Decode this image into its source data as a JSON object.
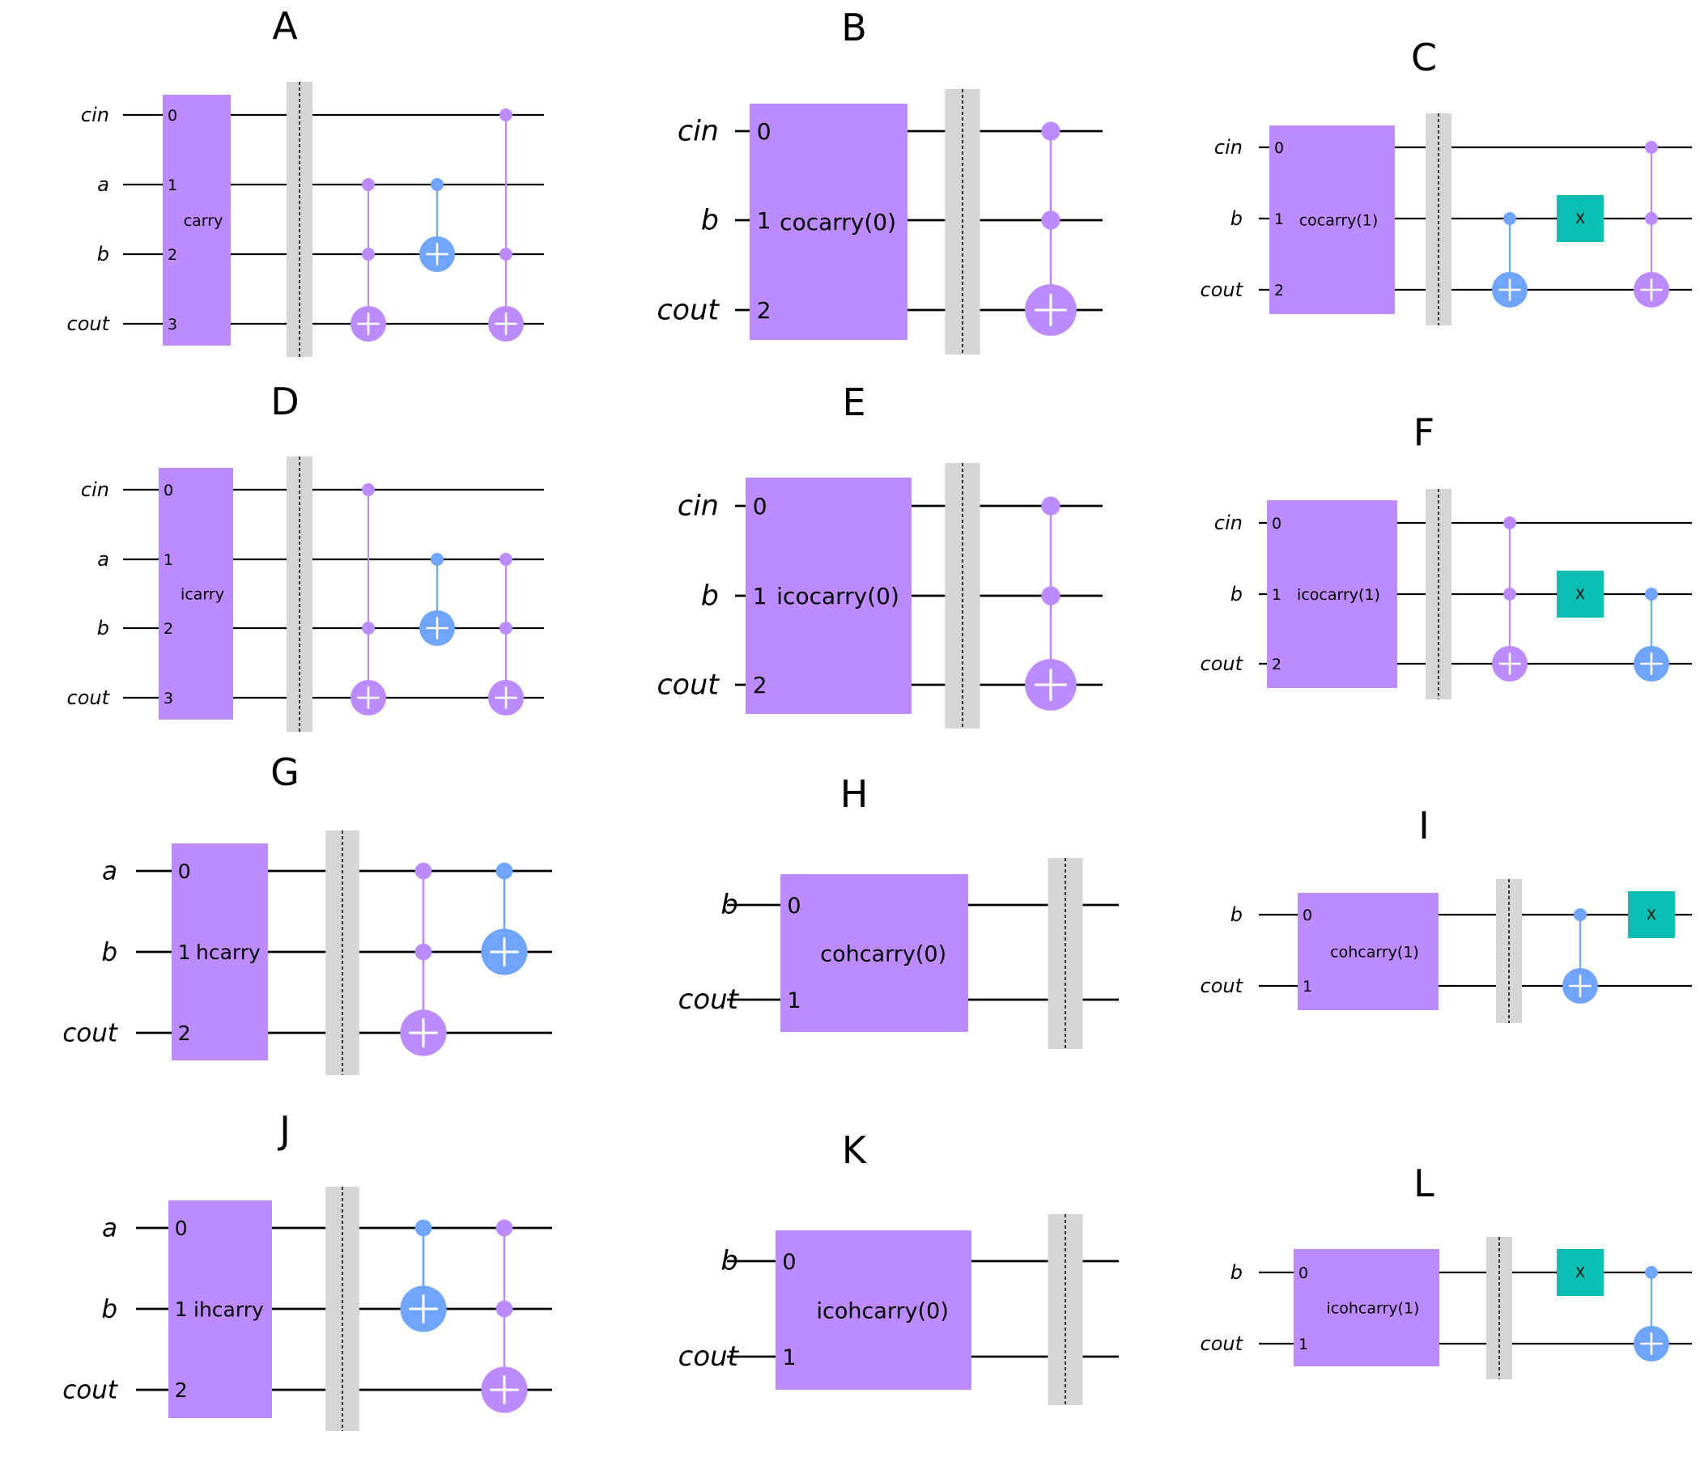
{
  "colors": {
    "gate": "#bb8bff",
    "gate_blue": "#6fa4ff",
    "x_gate": "#08bdb2",
    "barrier": "#d6d6d6",
    "wire": "#000000"
  },
  "panels": [
    {
      "letter": "A",
      "wires": [
        "cin",
        "a",
        "b",
        "cout"
      ],
      "ports": [
        "0",
        "1",
        "2",
        "3"
      ],
      "gate_label": "carry",
      "ops": [
        {
          "type": "ccx",
          "controls": [
            1,
            2
          ],
          "target": 3,
          "color": "purple"
        },
        {
          "type": "cx",
          "controls": [
            1
          ],
          "target": 2,
          "color": "blue"
        },
        {
          "type": "ccx",
          "controls": [
            0,
            2
          ],
          "target": 3,
          "color": "purple"
        }
      ]
    },
    {
      "letter": "B",
      "wires": [
        "cin",
        "b",
        "cout"
      ],
      "ports": [
        "0",
        "1",
        "2"
      ],
      "gate_label": "cocarry(0)",
      "ops": [
        {
          "type": "ccx",
          "controls": [
            0,
            1
          ],
          "target": 2,
          "color": "purple"
        }
      ]
    },
    {
      "letter": "C",
      "wires": [
        "cin",
        "b",
        "cout"
      ],
      "ports": [
        "0",
        "1",
        "2"
      ],
      "gate_label": "cocarry(1)",
      "ops": [
        {
          "type": "cx",
          "controls": [
            1
          ],
          "target": 2,
          "color": "blue"
        },
        {
          "type": "x",
          "target": 1,
          "label": "X"
        },
        {
          "type": "ccx",
          "controls": [
            0,
            1
          ],
          "target": 2,
          "color": "purple"
        }
      ]
    },
    {
      "letter": "D",
      "wires": [
        "cin",
        "a",
        "b",
        "cout"
      ],
      "ports": [
        "0",
        "1",
        "2",
        "3"
      ],
      "gate_label": "icarry",
      "ops": [
        {
          "type": "ccx",
          "controls": [
            0,
            2
          ],
          "target": 3,
          "color": "purple"
        },
        {
          "type": "cx",
          "controls": [
            1
          ],
          "target": 2,
          "color": "blue"
        },
        {
          "type": "ccx",
          "controls": [
            1,
            2
          ],
          "target": 3,
          "color": "purple"
        }
      ]
    },
    {
      "letter": "E",
      "wires": [
        "cin",
        "b",
        "cout"
      ],
      "ports": [
        "0",
        "1",
        "2"
      ],
      "gate_label": "icocarry(0)",
      "ops": [
        {
          "type": "ccx",
          "controls": [
            0,
            1
          ],
          "target": 2,
          "color": "purple"
        }
      ]
    },
    {
      "letter": "F",
      "wires": [
        "cin",
        "b",
        "cout"
      ],
      "ports": [
        "0",
        "1",
        "2"
      ],
      "gate_label": "icocarry(1)",
      "ops": [
        {
          "type": "ccx",
          "controls": [
            0,
            1
          ],
          "target": 2,
          "color": "purple"
        },
        {
          "type": "x",
          "target": 1,
          "label": "X"
        },
        {
          "type": "cx",
          "controls": [
            1
          ],
          "target": 2,
          "color": "blue"
        }
      ]
    },
    {
      "letter": "G",
      "wires": [
        "a",
        "b",
        "cout"
      ],
      "ports": [
        "0",
        "1",
        "2"
      ],
      "gate_label": "hcarry",
      "ops": [
        {
          "type": "ccx",
          "controls": [
            0,
            1
          ],
          "target": 2,
          "color": "purple"
        },
        {
          "type": "cx",
          "controls": [
            0
          ],
          "target": 1,
          "color": "blue"
        }
      ]
    },
    {
      "letter": "H",
      "wires": [
        "b",
        "cout"
      ],
      "ports": [
        "0",
        "1"
      ],
      "gate_label": "cohcarry(0)",
      "ops": []
    },
    {
      "letter": "I",
      "wires": [
        "b",
        "cout"
      ],
      "ports": [
        "0",
        "1"
      ],
      "gate_label": "cohcarry(1)",
      "ops": [
        {
          "type": "cx",
          "controls": [
            0
          ],
          "target": 1,
          "color": "blue"
        },
        {
          "type": "x",
          "target": 0,
          "label": "X"
        }
      ]
    },
    {
      "letter": "J",
      "wires": [
        "a",
        "b",
        "cout"
      ],
      "ports": [
        "0",
        "1",
        "2"
      ],
      "gate_label": "ihcarry",
      "ops": [
        {
          "type": "cx",
          "controls": [
            0
          ],
          "target": 1,
          "color": "blue"
        },
        {
          "type": "ccx",
          "controls": [
            0,
            1
          ],
          "target": 2,
          "color": "purple"
        }
      ]
    },
    {
      "letter": "K",
      "wires": [
        "b",
        "cout"
      ],
      "ports": [
        "0",
        "1"
      ],
      "gate_label": "icohcarry(0)",
      "ops": []
    },
    {
      "letter": "L",
      "wires": [
        "b",
        "cout"
      ],
      "ports": [
        "0",
        "1"
      ],
      "gate_label": "icohcarry(1)",
      "ops": [
        {
          "type": "x",
          "target": 0,
          "label": "X"
        },
        {
          "type": "cx",
          "controls": [
            0
          ],
          "target": 1,
          "color": "blue"
        }
      ]
    }
  ]
}
